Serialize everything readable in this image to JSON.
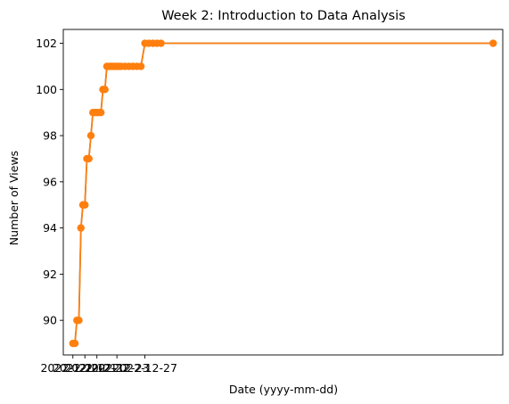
{
  "chart_data": {
    "type": "line",
    "title": "Week 2: Introduction to Data Analysis",
    "xlabel": "Date (yyyy-mm-dd)",
    "ylabel": "Number of Views",
    "ylim": [
      88.5,
      102.6
    ],
    "yticks": [
      90,
      92,
      94,
      96,
      98,
      100,
      102
    ],
    "xlim": [
      -2.4,
      107.4
    ],
    "xtick_labels": [
      {
        "x": 0,
        "label": "2022-12-20"
      },
      {
        "x": 3,
        "label": "2022-12-21"
      },
      {
        "x": 6,
        "label": "2022-12-22"
      },
      {
        "x": 11,
        "label": "2022-12-23"
      },
      {
        "x": 18,
        "label": "2022-12-27"
      }
    ],
    "grid": false,
    "legend": "none",
    "colors": {
      "line": "#ff7f0e",
      "marker": "#ff7f0e",
      "line_underlay": "#1f77b4"
    },
    "series": [
      {
        "x": [
          0,
          0.5,
          1,
          1.5,
          2,
          2.5,
          3,
          3.5,
          4,
          4.5,
          5,
          5.5,
          6,
          6.5,
          7,
          7.5,
          8,
          8.5,
          9,
          9.5,
          10,
          10.5,
          11,
          11.5,
          12,
          13,
          14,
          15,
          16,
          17,
          18,
          19,
          20,
          21,
          22,
          105
        ],
        "y": [
          89,
          89,
          90,
          90,
          94,
          95,
          95,
          97,
          97,
          98,
          99,
          99,
          99,
          99,
          99,
          100,
          100,
          101,
          101,
          101,
          101,
          101,
          101,
          101,
          101,
          101,
          101,
          101,
          101,
          101,
          102,
          102,
          102,
          102,
          102,
          102
        ]
      }
    ]
  }
}
